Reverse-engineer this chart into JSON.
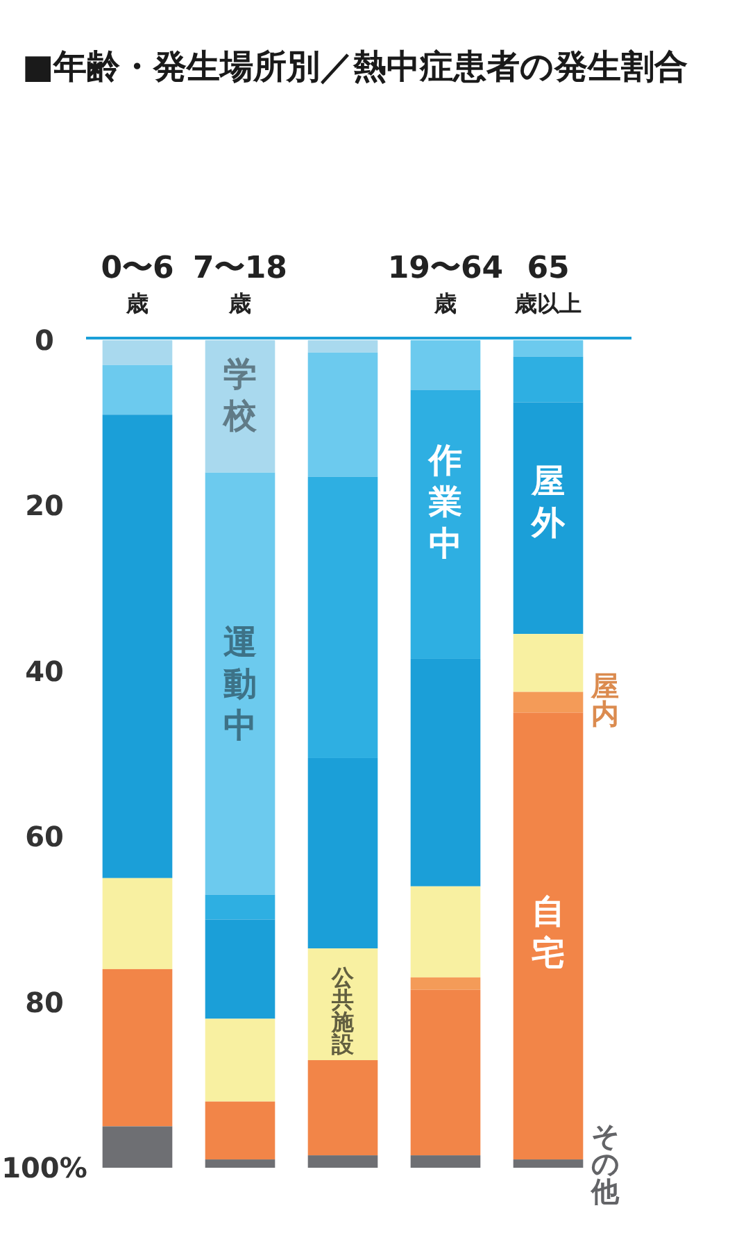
{
  "chart_data": {
    "type": "bar",
    "title": "■年齢・発生場所別／熱中症患者の発生割合",
    "stacked": true,
    "categories": [
      "0〜6歳",
      "7〜18歳",
      null,
      "19〜64歳",
      "65歳以上"
    ],
    "series": [
      {
        "color": "#a9d9ee",
        "values": [
          3,
          16,
          1.5,
          0,
          0
        ]
      },
      {
        "color": "#6ccaee",
        "values": [
          6,
          51,
          15,
          6,
          2
        ]
      },
      {
        "color": "#2eafe2",
        "values": [
          0,
          3,
          34,
          32.5,
          5.5
        ]
      },
      {
        "color": "#1b9fd8",
        "values": [
          56,
          12,
          23,
          27.5,
          28
        ]
      },
      {
        "color": "#f8f0a1",
        "values": [
          11,
          10,
          13.5,
          11,
          7
        ]
      },
      {
        "color": "#f49b58",
        "values": [
          0,
          0,
          0,
          1.5,
          2.5
        ]
      },
      {
        "color": "#f28548",
        "values": [
          19,
          7,
          11.5,
          20,
          54
        ]
      },
      {
        "color": "#6e6f73",
        "values": [
          5,
          1,
          1.5,
          1.5,
          1
        ]
      }
    ],
    "ylim": [
      100,
      0
    ],
    "yticks": [
      0,
      20,
      40,
      60,
      80,
      {
        "value": 100,
        "label": "100%"
      }
    ],
    "annotations": [
      "屋外",
      "屋内",
      "自宅",
      "その他",
      "作業中",
      "公共施設",
      "学校",
      "運動中"
    ]
  }
}
